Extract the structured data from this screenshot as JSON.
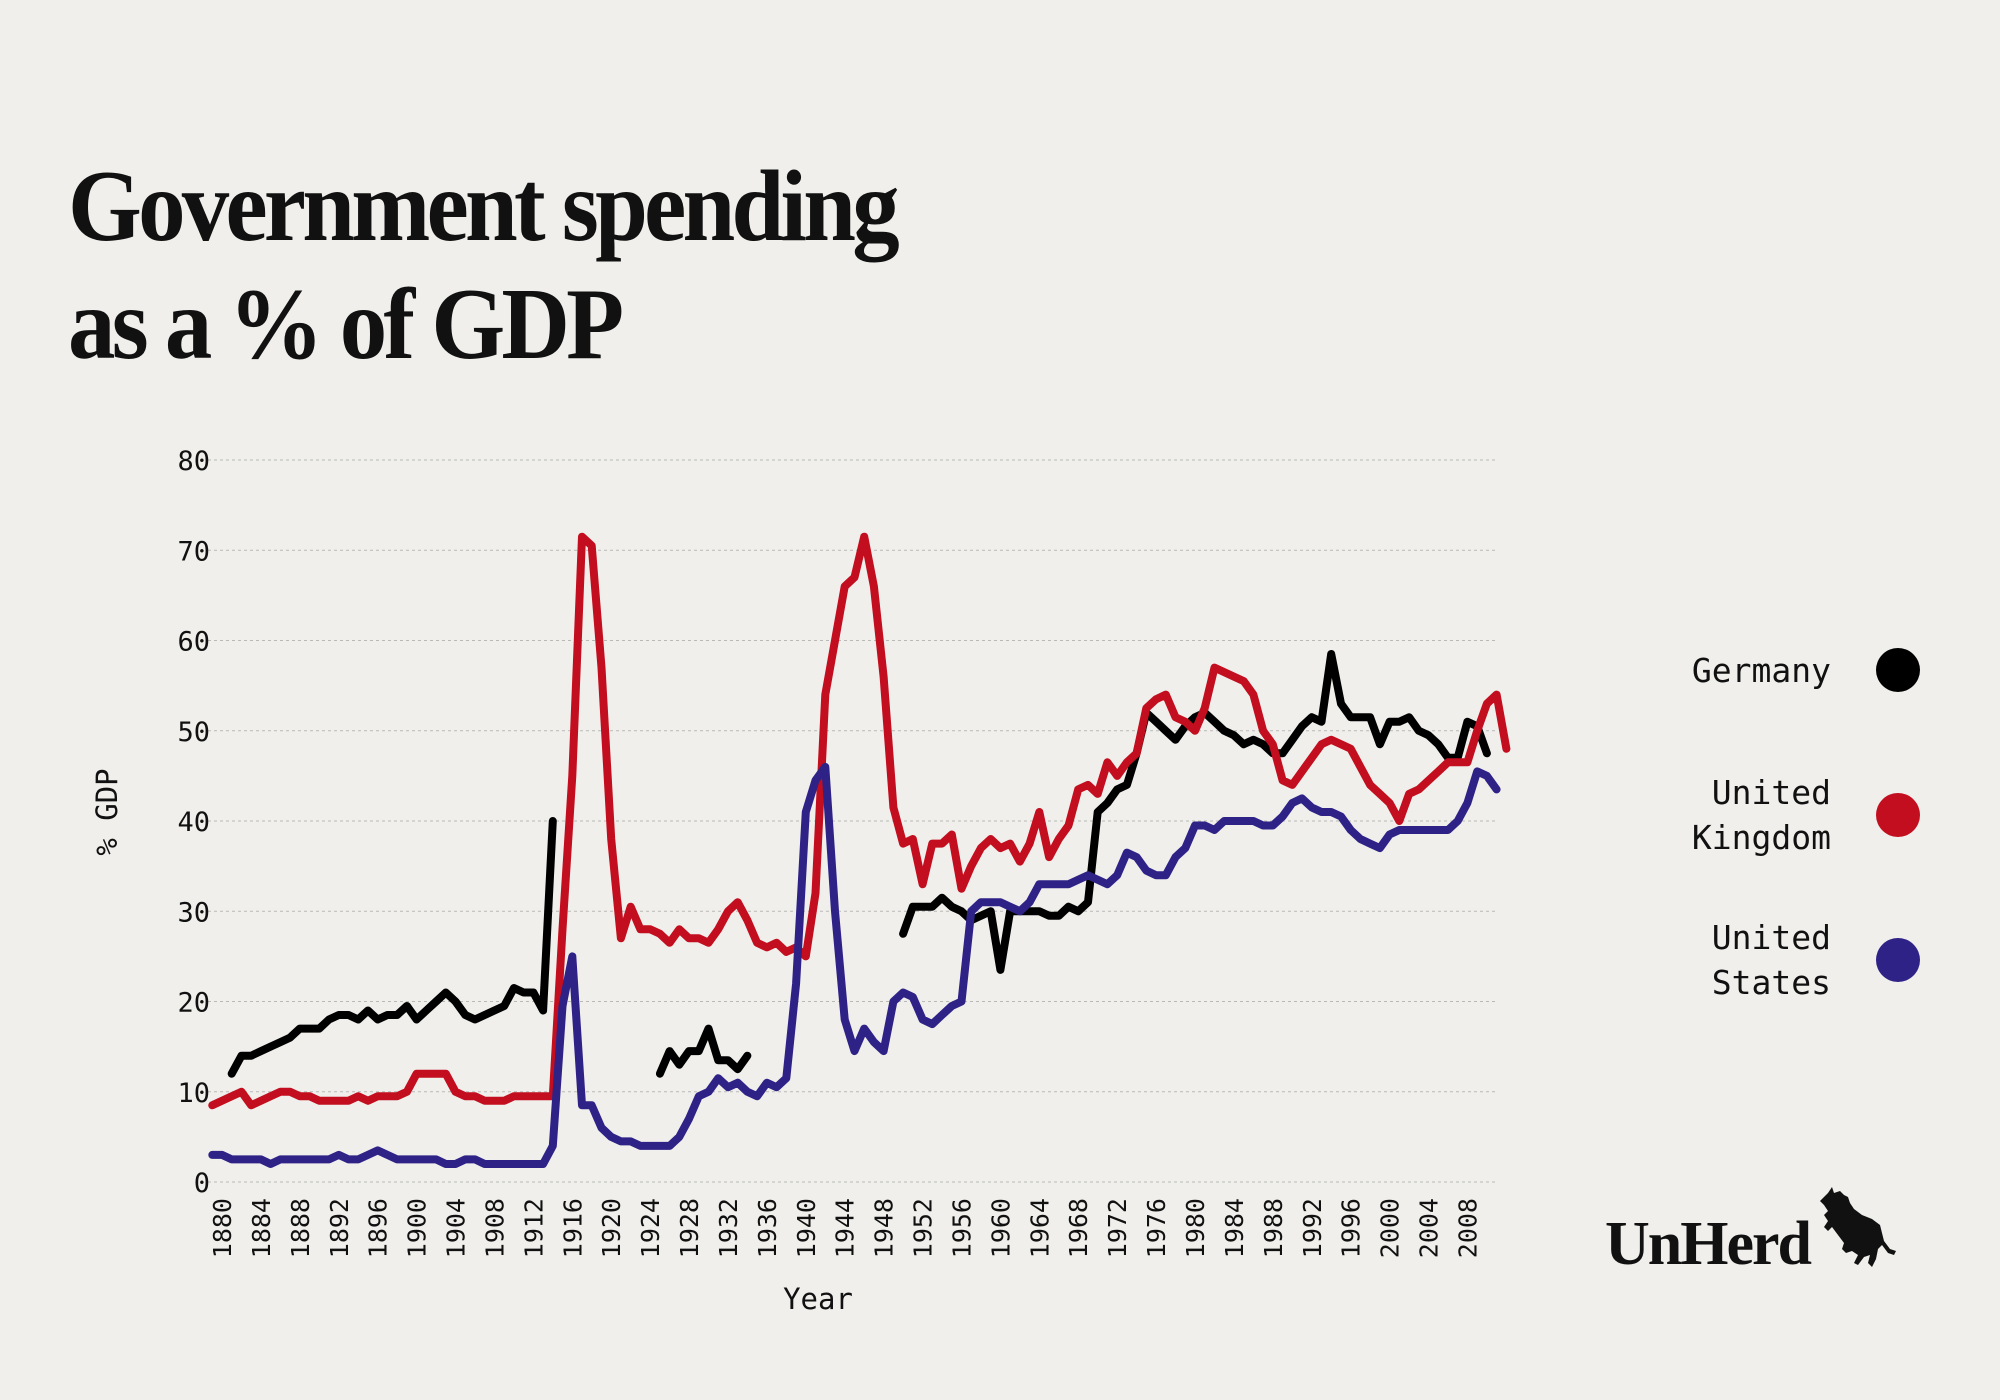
{
  "title": {
    "line1": "Government spending",
    "line2": "as a % of GDP"
  },
  "legend": [
    {
      "name": "Germany",
      "color": "#000000"
    },
    {
      "name": "United\nKingdom",
      "color": "#c20e1e"
    },
    {
      "name": "United\nStates",
      "color": "#2e2287"
    }
  ],
  "brand": {
    "name": "UnHerd",
    "icon": "bull-icon"
  },
  "chart_data": {
    "type": "line",
    "title": "Government spending as a % of GDP",
    "xlabel": "Year",
    "ylabel": "% GDP",
    "xlim": [
      1880,
      2011
    ],
    "ylim": [
      0,
      80
    ],
    "yticks": [
      0,
      10,
      20,
      30,
      40,
      50,
      60,
      70,
      80
    ],
    "xticks": [
      1880,
      1884,
      1888,
      1892,
      1896,
      1900,
      1904,
      1908,
      1912,
      1916,
      1920,
      1924,
      1928,
      1932,
      1936,
      1940,
      1944,
      1948,
      1952,
      1956,
      1960,
      1964,
      1968,
      1972,
      1976,
      1980,
      1984,
      1988,
      1992,
      1996,
      2000,
      2004,
      2008
    ],
    "grid": true,
    "legend_position": "right",
    "series": [
      {
        "name": "Germany",
        "color": "#000000",
        "segments": [
          {
            "start": 1881,
            "values": [
              12,
              14,
              14,
              14.5,
              15,
              15.5,
              16,
              17,
              17,
              17,
              18,
              18.5,
              18.5,
              18,
              19,
              18,
              18.5,
              18.5,
              19.5,
              18,
              19,
              20,
              21,
              20,
              18.5,
              18,
              18.5,
              19,
              19.5,
              21.5,
              21,
              21,
              19,
              40
            ]
          },
          {
            "start": 1925,
            "values": [
              12,
              14.5,
              13,
              14.5,
              14.5,
              17,
              13.5,
              13.5,
              12.5,
              14
            ]
          },
          {
            "start": 1950,
            "values": [
              27.5,
              30.5,
              30.5,
              30.5,
              31.5,
              30.5,
              30,
              29,
              29.5,
              30,
              23.5,
              30,
              30,
              30,
              30,
              29.5,
              29.5,
              30.5,
              30,
              31,
              41,
              42,
              43.5,
              44,
              47.5,
              52,
              51,
              50,
              49,
              50.5,
              51.5,
              52,
              51,
              50,
              49.5,
              48.5,
              49,
              48.5,
              47.5,
              47.5,
              49,
              50.5,
              51.5,
              51,
              58.5,
              53,
              51.5,
              51.5,
              51.5,
              48.5,
              51,
              51,
              51.5,
              50,
              49.5,
              48.5,
              47,
              47,
              51,
              50.5,
              47.5
            ]
          }
        ]
      },
      {
        "name": "United Kingdom",
        "color": "#c20e1e",
        "segments": [
          {
            "start": 1879,
            "values": [
              8.5,
              9,
              9.5,
              10,
              8.5,
              9,
              9.5,
              10,
              10,
              9.5,
              9.5,
              9,
              9,
              9,
              9,
              9.5,
              9,
              9.5,
              9.5,
              9.5,
              10,
              12,
              12,
              12,
              12,
              10,
              9.5,
              9.5,
              9,
              9,
              9,
              9.5,
              9.5,
              9.5,
              9.5,
              9.5,
              28,
              45,
              71.5,
              70.5,
              57,
              38,
              27,
              30.5,
              28,
              28,
              27.5,
              26.5,
              28,
              27,
              27,
              26.5,
              28,
              30,
              31,
              29,
              26.5,
              26,
              26.5,
              25.5,
              26,
              25,
              32,
              54,
              60,
              66,
              67,
              71.5,
              66,
              56,
              41.5,
              37.5,
              38,
              33,
              37.5,
              37.5,
              38.5,
              32.5,
              35,
              37,
              38,
              37,
              37.5,
              35.5,
              37.5,
              41,
              36,
              38,
              39.5,
              43.5,
              44,
              43,
              46.5,
              45,
              46.5,
              47.5,
              52.5,
              53.5,
              54,
              51.5,
              51,
              50,
              52.5,
              57,
              56.5,
              56,
              55.5,
              54,
              50,
              48.5,
              44.5,
              44,
              45.5,
              47,
              48.5,
              49,
              48.5,
              48,
              46,
              44,
              43,
              42,
              40,
              43,
              43.5,
              44.5,
              45.5,
              46.5,
              46.5,
              46.5,
              50,
              53,
              54,
              48
            ]
          }
        ]
      },
      {
        "name": "United States",
        "color": "#2e2287",
        "segments": [
          {
            "start": 1879,
            "values": [
              3,
              3,
              2.5,
              2.5,
              2.5,
              2.5,
              2,
              2.5,
              2.5,
              2.5,
              2.5,
              2.5,
              2.5,
              3,
              2.5,
              2.5,
              3,
              3.5,
              3,
              2.5,
              2.5,
              2.5,
              2.5,
              2.5,
              2,
              2,
              2.5,
              2.5,
              2,
              2,
              2,
              2,
              2,
              2,
              2,
              4,
              19.5,
              25,
              8.5,
              8.5,
              6,
              5,
              4.5,
              4.5,
              4,
              4,
              4,
              4,
              5,
              7,
              9.5,
              10,
              11.5,
              10.5,
              11,
              10,
              9.5,
              11,
              10.5,
              11.5,
              22,
              41,
              44.5,
              46,
              30,
              18,
              14.5,
              17,
              15.5,
              14.5,
              20,
              21,
              20.5,
              18,
              17.5,
              18.5,
              19.5,
              20,
              30,
              31,
              31,
              31,
              30.5,
              30,
              31,
              33,
              33,
              33,
              33,
              33.5,
              34,
              33.5,
              33,
              34,
              36.5,
              36,
              34.5,
              34,
              34,
              36,
              37,
              39.5,
              39.5,
              39,
              40,
              40,
              40,
              40,
              39.5,
              39.5,
              40.5,
              42,
              42.5,
              41.5,
              41,
              41,
              40.5,
              39,
              38,
              37.5,
              37,
              38.5,
              39,
              39,
              39,
              39,
              39,
              39,
              40,
              42,
              45.5,
              45,
              43.5
            ]
          }
        ]
      }
    ]
  }
}
